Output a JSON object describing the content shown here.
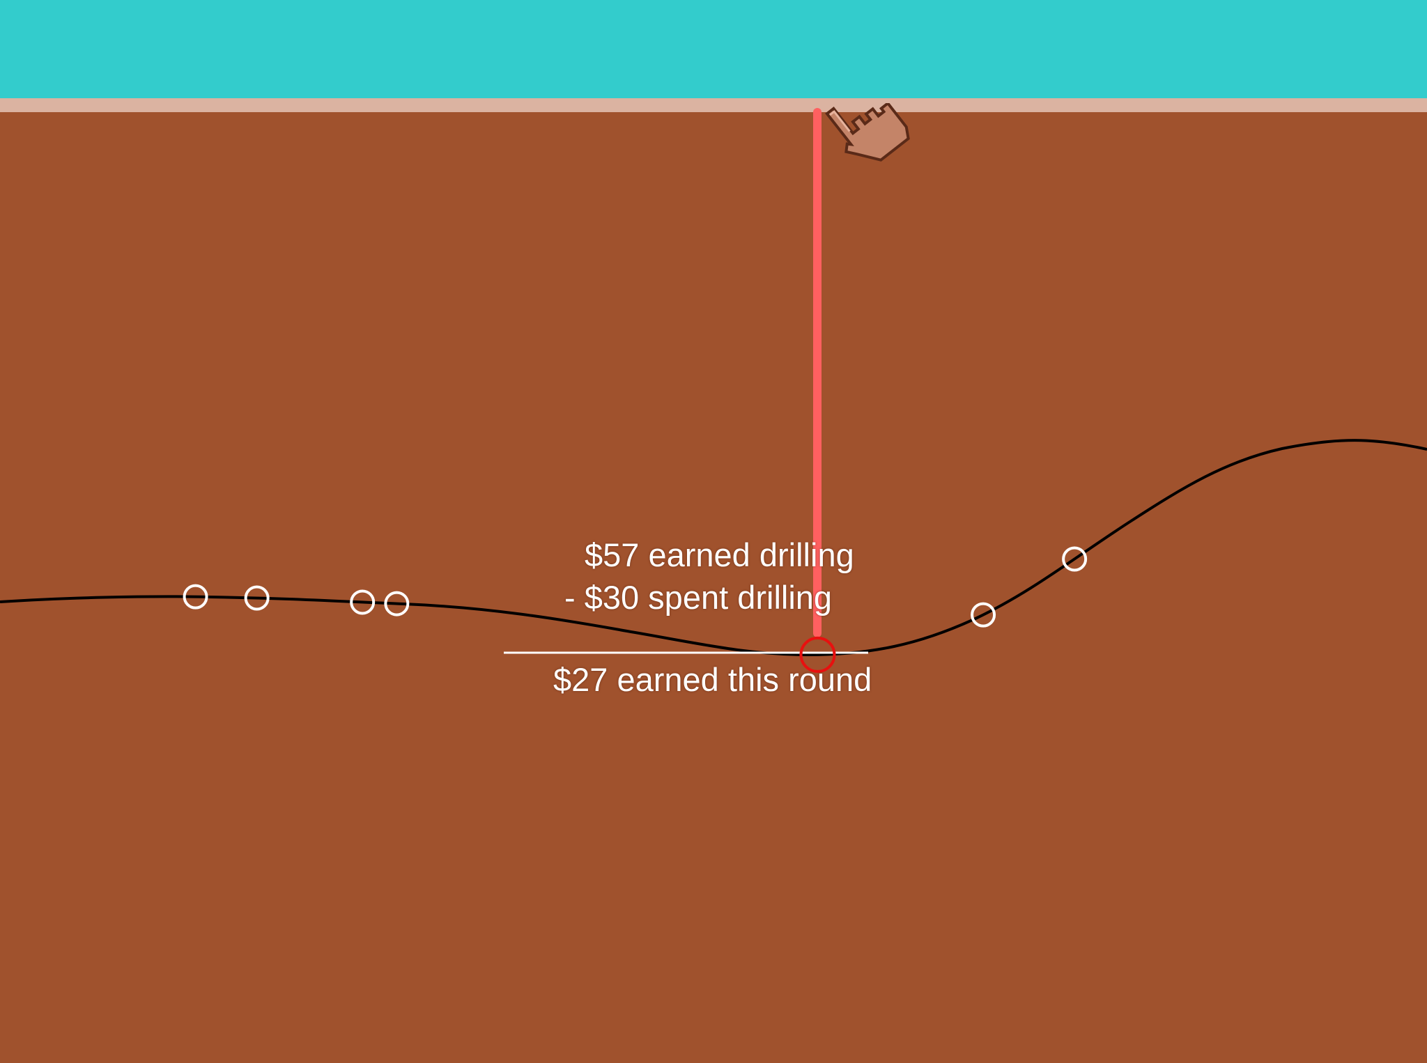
{
  "colors": {
    "sky": "#33cccc",
    "surface": "#dbb3a1",
    "ground": "#a0522d",
    "drill": "#ff6060",
    "curve": "#000000",
    "marker": "#ffffff",
    "active_marker": "#e8100f",
    "text": "#ffffff"
  },
  "score": {
    "earned": "$57 earned drilling",
    "spent": "- $30 spent drilling",
    "total": "$27 earned this round"
  },
  "drill_markers": [
    {
      "x_fraction": 0.137
    },
    {
      "x_fraction": 0.18
    },
    {
      "x_fraction": 0.254
    },
    {
      "x_fraction": 0.278
    },
    {
      "x_fraction": 0.689
    },
    {
      "x_fraction": 0.753
    }
  ],
  "current_drill": {
    "x_fraction": 0.573
  },
  "cursor_icon": "pointing-hand-icon"
}
